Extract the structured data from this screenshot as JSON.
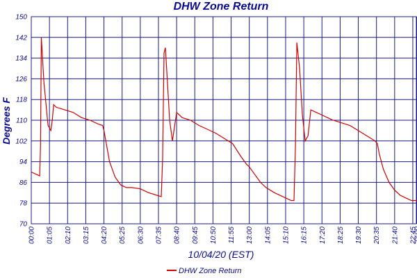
{
  "chart_data": {
    "type": "line",
    "title": "DHW Zone Return",
    "xlabel": "10/04/20 (EST)",
    "ylabel": "Degrees F",
    "ylim": [
      70,
      150
    ],
    "yticks": [
      70,
      78,
      86,
      94,
      102,
      110,
      118,
      126,
      134,
      142,
      150
    ],
    "xlim_minutes": [
      0,
      1380
    ],
    "xtick_labels": [
      "00:00",
      "01:05",
      "02:10",
      "03:15",
      "04:20",
      "05:25",
      "06:30",
      "07:35",
      "08:40",
      "09:45",
      "10:50",
      "11:55",
      "13:00",
      "14:05",
      "15:10",
      "16:15",
      "17:20",
      "18:25",
      "19:30",
      "20:35",
      "21:40",
      "22:45",
      "23:00"
    ],
    "grid": true,
    "legend_position": "bottom-center",
    "series": [
      {
        "name": "DHW Zone Return",
        "color": "#cc0000",
        "x_time": [
          "00:00",
          "00:20",
          "00:30",
          "00:33",
          "00:36",
          "00:45",
          "01:00",
          "01:10",
          "01:15",
          "01:20",
          "01:30",
          "01:45",
          "02:00",
          "02:30",
          "03:00",
          "03:30",
          "04:00",
          "04:15",
          "04:20",
          "04:40",
          "05:00",
          "05:20",
          "05:40",
          "06:00",
          "06:30",
          "07:00",
          "07:30",
          "07:45",
          "07:50",
          "07:55",
          "08:00",
          "08:15",
          "08:25",
          "08:40",
          "08:50",
          "09:00",
          "09:15",
          "09:30",
          "10:00",
          "10:30",
          "11:00",
          "11:30",
          "12:00",
          "12:30",
          "12:50",
          "13:00",
          "13:20",
          "13:40",
          "14:00",
          "14:30",
          "15:00",
          "15:30",
          "15:40",
          "15:45",
          "15:50",
          "16:00",
          "16:10",
          "16:20",
          "16:30",
          "16:40",
          "17:00",
          "17:20",
          "17:40",
          "18:00",
          "18:30",
          "19:00",
          "19:30",
          "20:00",
          "20:30",
          "20:38",
          "20:45",
          "21:00",
          "21:20",
          "21:40",
          "22:00",
          "22:20",
          "22:40",
          "23:00"
        ],
        "y": [
          90,
          89,
          88.5,
          100,
          142,
          125,
          108,
          106,
          110,
          116,
          115,
          114.5,
          114,
          113,
          111,
          110,
          108.5,
          108,
          106,
          94,
          88,
          85,
          84,
          84,
          83.5,
          82,
          81,
          80.5,
          95,
          136,
          138,
          110,
          102,
          113,
          112,
          111,
          110.5,
          110,
          108,
          106.5,
          105,
          103,
          101,
          96,
          93,
          92,
          89,
          86,
          84,
          82,
          80.5,
          79,
          79,
          100,
          140,
          130,
          112,
          102,
          104,
          114,
          113,
          112,
          111,
          110,
          109,
          108,
          106,
          104,
          102,
          101,
          97,
          91,
          86,
          83,
          81,
          80,
          79,
          79
        ]
      }
    ]
  }
}
